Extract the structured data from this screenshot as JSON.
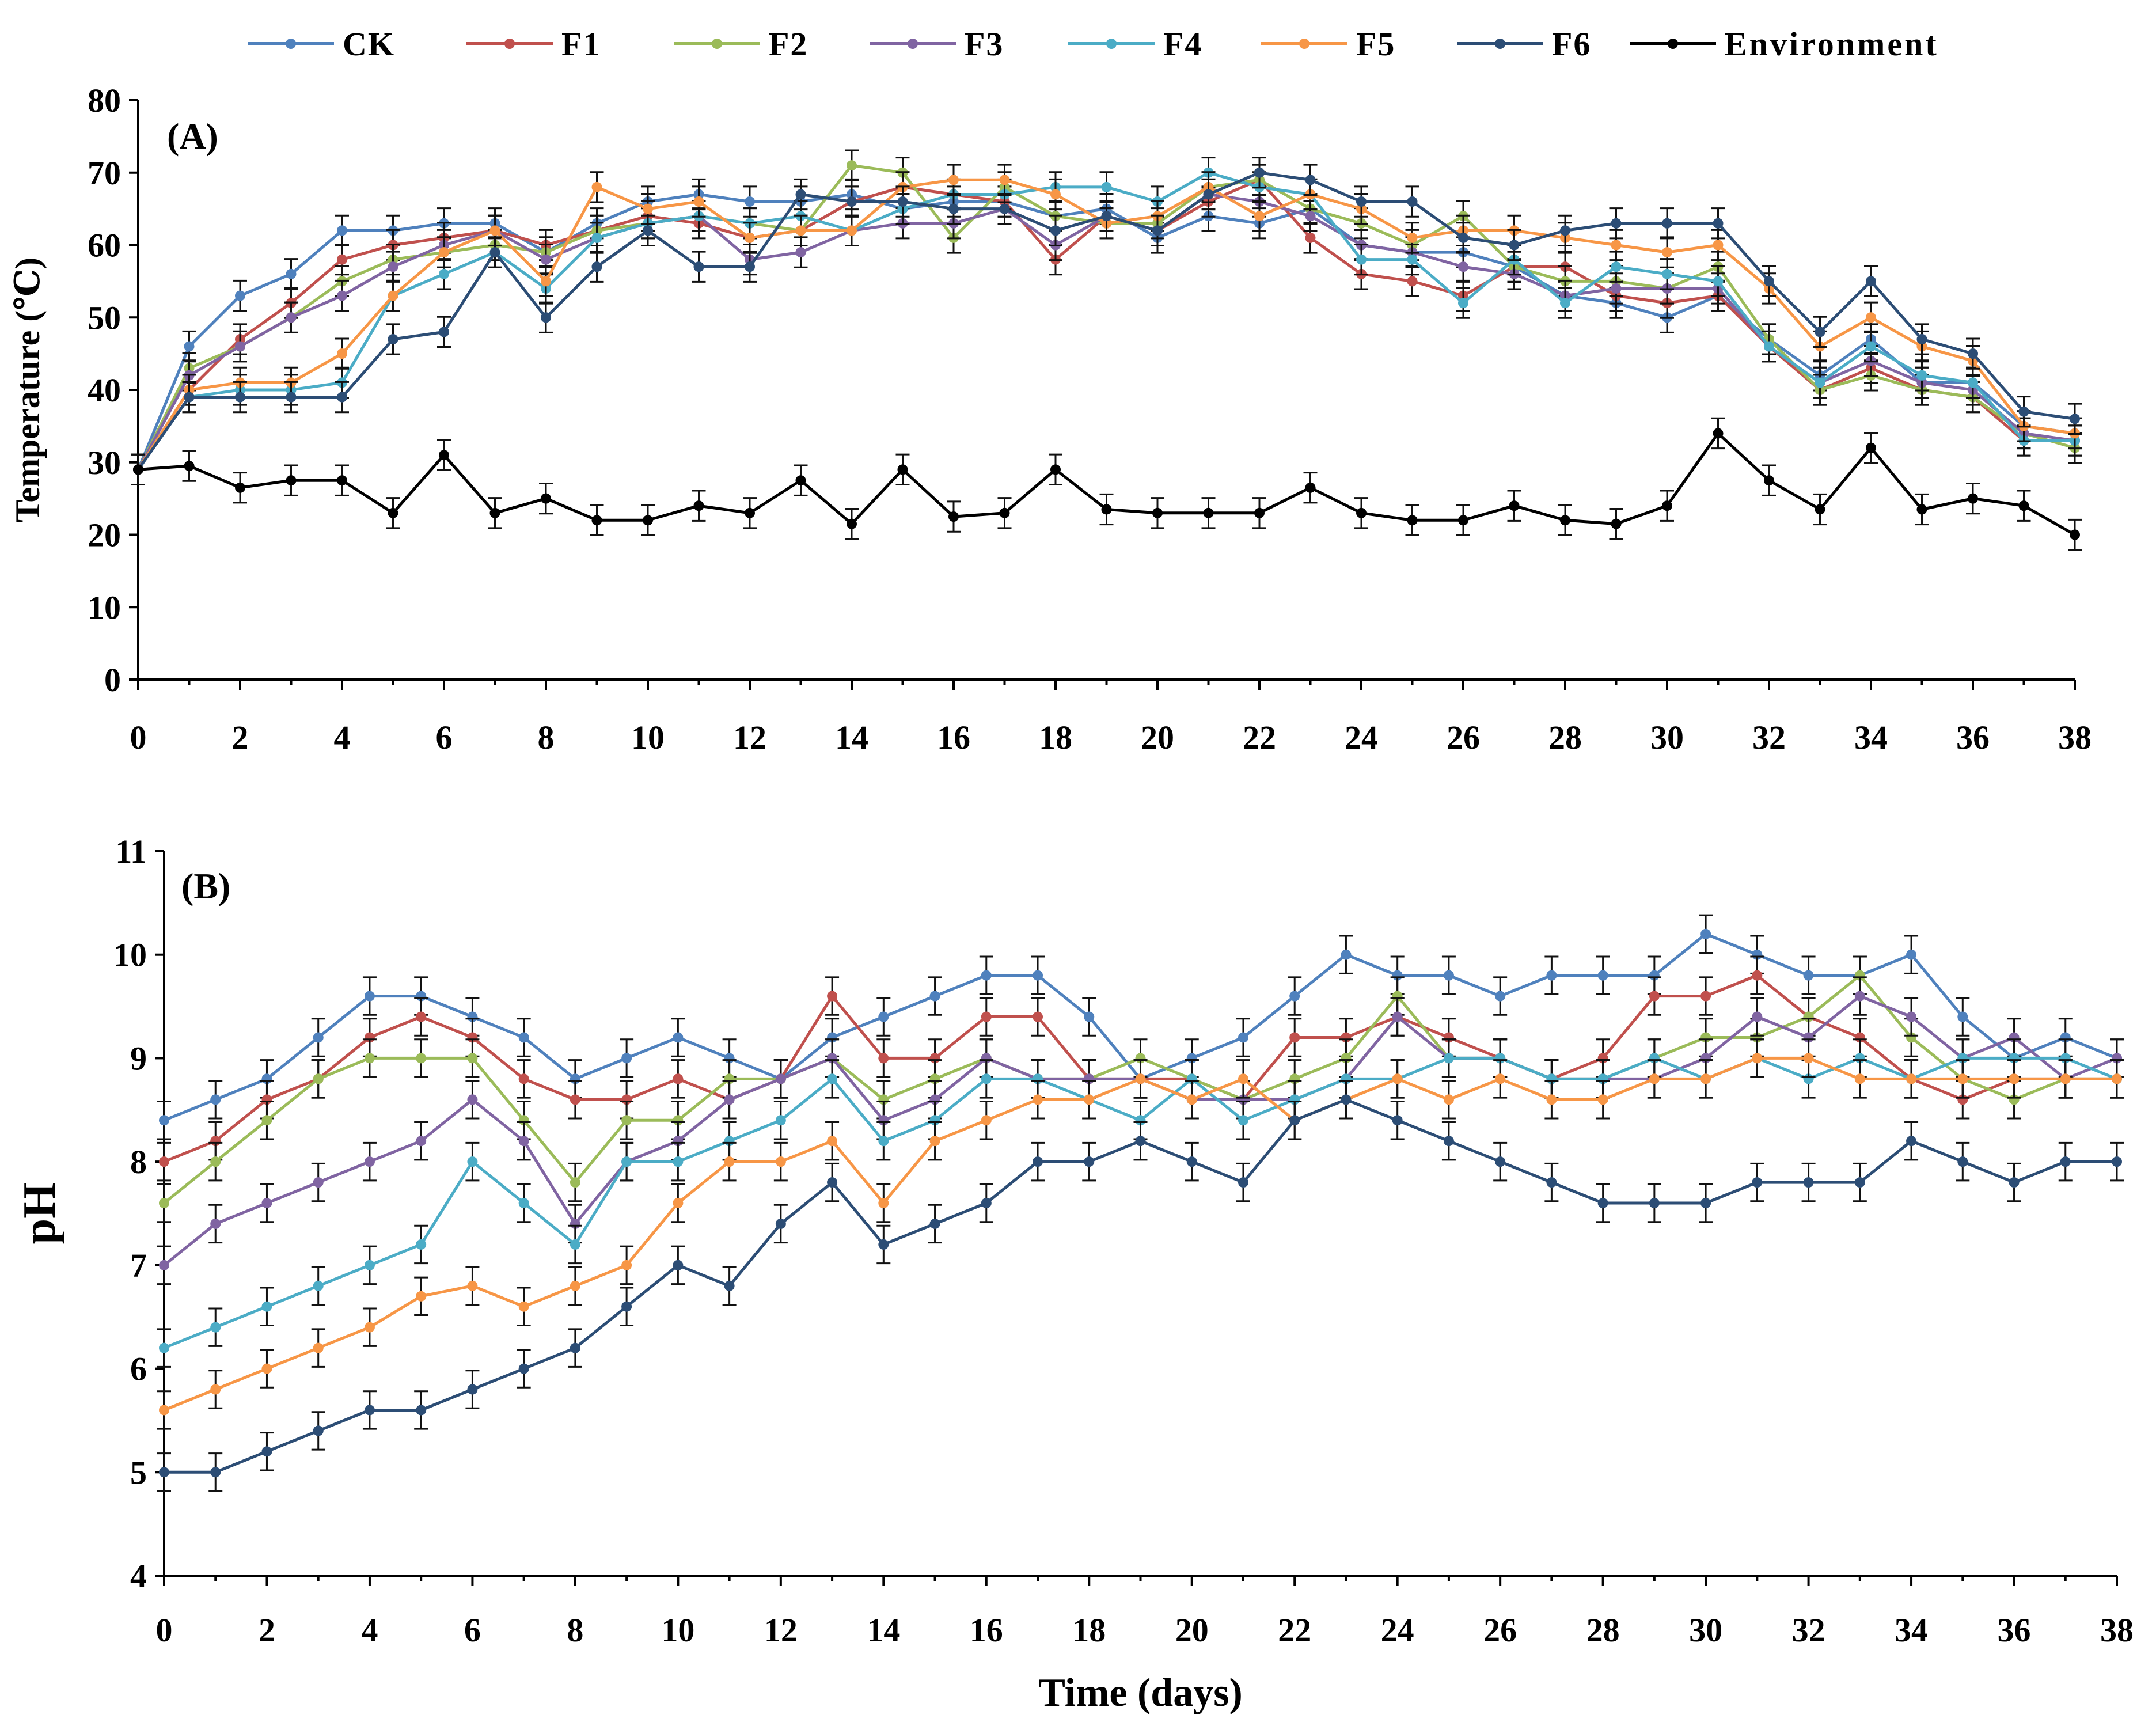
{
  "legend": {
    "entries": [
      {
        "name": "CK",
        "color": "#4f81bd"
      },
      {
        "name": "F1",
        "color": "#c0504d"
      },
      {
        "name": "F2",
        "color": "#9bbb59"
      },
      {
        "name": "F3",
        "color": "#8064a2"
      },
      {
        "name": "F4",
        "color": "#4bacc6"
      },
      {
        "name": "F5",
        "color": "#f79646"
      },
      {
        "name": "F6",
        "color": "#2c4d75"
      },
      {
        "name": "Environment",
        "color": "#000000"
      }
    ]
  },
  "chart_data": [
    {
      "type": "line",
      "panel_label": "(A)",
      "title": "",
      "xlabel": "",
      "ylabel": "Temperature  (℃)",
      "xlim": [
        0,
        38
      ],
      "ylim": [
        0,
        80
      ],
      "xticks": [
        0,
        2,
        4,
        6,
        8,
        10,
        12,
        14,
        16,
        18,
        20,
        22,
        24,
        26,
        28,
        30,
        32,
        34,
        36,
        38
      ],
      "yticks": [
        0,
        10,
        20,
        30,
        40,
        50,
        60,
        70,
        80
      ],
      "grid": false,
      "legend_position": "top",
      "error_bars": true,
      "x": [
        0,
        1,
        2,
        3,
        4,
        5,
        6,
        7,
        8,
        9,
        10,
        11,
        12,
        13,
        14,
        15,
        16,
        17,
        18,
        19,
        20,
        21,
        22,
        23,
        24,
        25,
        26,
        27,
        28,
        29,
        30,
        31,
        32,
        33,
        34,
        35,
        36,
        37,
        38
      ],
      "series": [
        {
          "name": "CK",
          "color": "#4f81bd",
          "values": [
            29,
            46,
            53,
            56,
            62,
            62,
            63,
            63,
            59,
            63,
            66,
            67,
            66,
            66,
            67,
            65,
            66,
            66,
            64,
            65,
            61,
            64,
            63,
            65,
            60,
            59,
            59,
            57,
            53,
            52,
            50,
            53,
            47,
            42,
            47,
            41,
            41,
            35,
            34
          ]
        },
        {
          "name": "F1",
          "color": "#c0504d",
          "values": [
            29,
            40,
            47,
            52,
            58,
            60,
            61,
            62,
            60,
            62,
            64,
            63,
            61,
            62,
            66,
            68,
            67,
            66,
            58,
            64,
            62,
            66,
            69,
            61,
            56,
            55,
            53,
            57,
            57,
            53,
            52,
            53,
            46,
            40,
            43,
            40,
            39,
            33,
            33
          ]
        },
        {
          "name": "F2",
          "color": "#9bbb59",
          "values": [
            29,
            43,
            46,
            50,
            55,
            58,
            59,
            60,
            59,
            62,
            63,
            64,
            63,
            62,
            71,
            70,
            61,
            68,
            64,
            63,
            63,
            68,
            69,
            65,
            63,
            60,
            64,
            57,
            55,
            55,
            54,
            57,
            47,
            40,
            42,
            40,
            39,
            34,
            32
          ]
        },
        {
          "name": "F3",
          "color": "#8064a2",
          "values": [
            29,
            42,
            46,
            50,
            53,
            57,
            60,
            62,
            58,
            61,
            63,
            64,
            58,
            59,
            62,
            63,
            63,
            65,
            60,
            64,
            62,
            67,
            66,
            64,
            60,
            59,
            57,
            56,
            53,
            54,
            54,
            54,
            46,
            41,
            44,
            41,
            40,
            34,
            33
          ]
        },
        {
          "name": "F4",
          "color": "#4bacc6",
          "values": [
            29,
            39,
            40,
            40,
            41,
            53,
            56,
            59,
            54,
            61,
            63,
            64,
            63,
            64,
            62,
            65,
            67,
            67,
            68,
            68,
            66,
            70,
            68,
            67,
            58,
            58,
            52,
            58,
            52,
            57,
            56,
            55,
            46,
            41,
            46,
            42,
            41,
            33,
            33
          ]
        },
        {
          "name": "F5",
          "color": "#f79646",
          "values": [
            29,
            40,
            41,
            41,
            45,
            53,
            59,
            62,
            55,
            68,
            65,
            66,
            61,
            62,
            62,
            68,
            69,
            69,
            67,
            63,
            64,
            68,
            64,
            67,
            65,
            61,
            62,
            62,
            61,
            60,
            59,
            60,
            54,
            46,
            50,
            46,
            44,
            35,
            34
          ]
        },
        {
          "name": "F6",
          "color": "#2c4d75",
          "values": [
            29,
            39,
            39,
            39,
            39,
            47,
            48,
            59,
            50,
            57,
            62,
            57,
            57,
            67,
            66,
            66,
            65,
            65,
            62,
            64,
            62,
            67,
            70,
            69,
            66,
            66,
            61,
            60,
            62,
            63,
            63,
            63,
            55,
            48,
            55,
            47,
            45,
            37,
            36
          ]
        },
        {
          "name": "Environment",
          "color": "#000000",
          "values": [
            29,
            29.5,
            26.5,
            27.5,
            27.5,
            23,
            31,
            23,
            25,
            22,
            22,
            24,
            23,
            27.5,
            21.5,
            29,
            22.5,
            23,
            29,
            23.5,
            23,
            23,
            23,
            26.5,
            23,
            22,
            22,
            24,
            22,
            21.5,
            24,
            34,
            27.5,
            23.5,
            32,
            23.5,
            25,
            24,
            20
          ]
        }
      ]
    },
    {
      "type": "line",
      "panel_label": "(B)",
      "title": "",
      "xlabel": "Time (days)",
      "ylabel": "pH",
      "xlim": [
        0,
        38
      ],
      "ylim": [
        4,
        11
      ],
      "xticks": [
        0,
        2,
        4,
        6,
        8,
        10,
        12,
        14,
        16,
        18,
        20,
        22,
        24,
        26,
        28,
        30,
        32,
        34,
        36,
        38
      ],
      "yticks": [
        4,
        5,
        6,
        7,
        8,
        9,
        10,
        11
      ],
      "grid": false,
      "error_bars": true,
      "x": [
        0,
        1,
        2,
        3,
        4,
        5,
        6,
        7,
        8,
        9,
        10,
        11,
        12,
        13,
        14,
        15,
        16,
        17,
        18,
        19,
        20,
        21,
        22,
        23,
        24,
        25,
        26,
        27,
        28,
        29,
        30,
        31,
        32,
        33,
        34,
        35,
        36,
        37,
        38
      ],
      "series": [
        {
          "name": "CK",
          "color": "#4f81bd",
          "values": [
            8.4,
            8.6,
            8.8,
            9.2,
            9.6,
            9.6,
            9.4,
            9.2,
            8.8,
            9.0,
            9.2,
            9.0,
            8.8,
            9.2,
            9.4,
            9.6,
            9.8,
            9.8,
            9.4,
            8.8,
            9.0,
            9.2,
            9.6,
            10.0,
            9.8,
            9.8,
            9.6,
            9.8,
            9.8,
            9.8,
            10.2,
            10.0,
            9.8,
            9.8,
            10.0,
            9.4,
            9.0,
            9.2,
            9.0
          ]
        },
        {
          "name": "F1",
          "color": "#c0504d",
          "values": [
            8.0,
            8.2,
            8.6,
            8.8,
            9.2,
            9.4,
            9.2,
            8.8,
            8.6,
            8.6,
            8.8,
            8.6,
            8.8,
            9.6,
            9.0,
            9.0,
            9.4,
            9.4,
            8.8,
            8.8,
            8.8,
            8.6,
            9.2,
            9.2,
            9.4,
            9.2,
            9.0,
            8.8,
            9.0,
            9.6,
            9.6,
            9.8,
            9.4,
            9.2,
            8.8,
            8.6,
            8.8,
            8.8,
            8.8
          ]
        },
        {
          "name": "F2",
          "color": "#9bbb59",
          "values": [
            7.6,
            8.0,
            8.4,
            8.8,
            9.0,
            9.0,
            9.0,
            8.4,
            7.8,
            8.4,
            8.4,
            8.8,
            8.8,
            9.0,
            8.6,
            8.8,
            9.0,
            8.8,
            8.8,
            9.0,
            8.8,
            8.6,
            8.8,
            9.0,
            9.6,
            9.0,
            9.0,
            8.8,
            8.8,
            9.0,
            9.2,
            9.2,
            9.4,
            9.8,
            9.2,
            8.8,
            8.6,
            8.8,
            8.8
          ]
        },
        {
          "name": "F3",
          "color": "#8064a2",
          "values": [
            7.0,
            7.4,
            7.6,
            7.8,
            8.0,
            8.2,
            8.6,
            8.2,
            7.4,
            8.0,
            8.2,
            8.6,
            8.8,
            9.0,
            8.4,
            8.6,
            9.0,
            8.8,
            8.8,
            8.8,
            8.6,
            8.6,
            8.6,
            8.8,
            9.4,
            9.0,
            9.0,
            8.8,
            8.8,
            8.8,
            9.0,
            9.4,
            9.2,
            9.6,
            9.4,
            9.0,
            9.2,
            8.8,
            9.0
          ]
        },
        {
          "name": "F4",
          "color": "#4bacc6",
          "values": [
            6.2,
            6.4,
            6.6,
            6.8,
            7.0,
            7.2,
            8.0,
            7.6,
            7.2,
            8.0,
            8.0,
            8.2,
            8.4,
            8.8,
            8.2,
            8.4,
            8.8,
            8.8,
            8.6,
            8.4,
            8.8,
            8.4,
            8.6,
            8.8,
            8.8,
            9.0,
            9.0,
            8.8,
            8.8,
            9.0,
            8.8,
            9.0,
            8.8,
            9.0,
            8.8,
            9.0,
            9.0,
            9.0,
            8.8
          ]
        },
        {
          "name": "F5",
          "color": "#f79646",
          "values": [
            5.6,
            5.8,
            6.0,
            6.2,
            6.4,
            6.7,
            6.8,
            6.6,
            6.8,
            7.0,
            7.6,
            8.0,
            8.0,
            8.2,
            7.6,
            8.2,
            8.4,
            8.6,
            8.6,
            8.8,
            8.6,
            8.8,
            8.4,
            8.6,
            8.8,
            8.6,
            8.8,
            8.6,
            8.6,
            8.8,
            8.8,
            9.0,
            9.0,
            8.8,
            8.8,
            8.8,
            8.8,
            8.8,
            8.8
          ]
        },
        {
          "name": "F6",
          "color": "#2c4d75",
          "values": [
            5.0,
            5.0,
            5.2,
            5.4,
            5.6,
            5.6,
            5.8,
            6.0,
            6.2,
            6.6,
            7.0,
            6.8,
            7.4,
            7.8,
            7.2,
            7.4,
            7.6,
            8.0,
            8.0,
            8.2,
            8.0,
            7.8,
            8.4,
            8.6,
            8.4,
            8.2,
            8.0,
            7.8,
            7.6,
            7.6,
            7.6,
            7.8,
            7.8,
            7.8,
            8.2,
            8.0,
            7.8,
            8.0,
            8.0
          ]
        }
      ]
    }
  ]
}
